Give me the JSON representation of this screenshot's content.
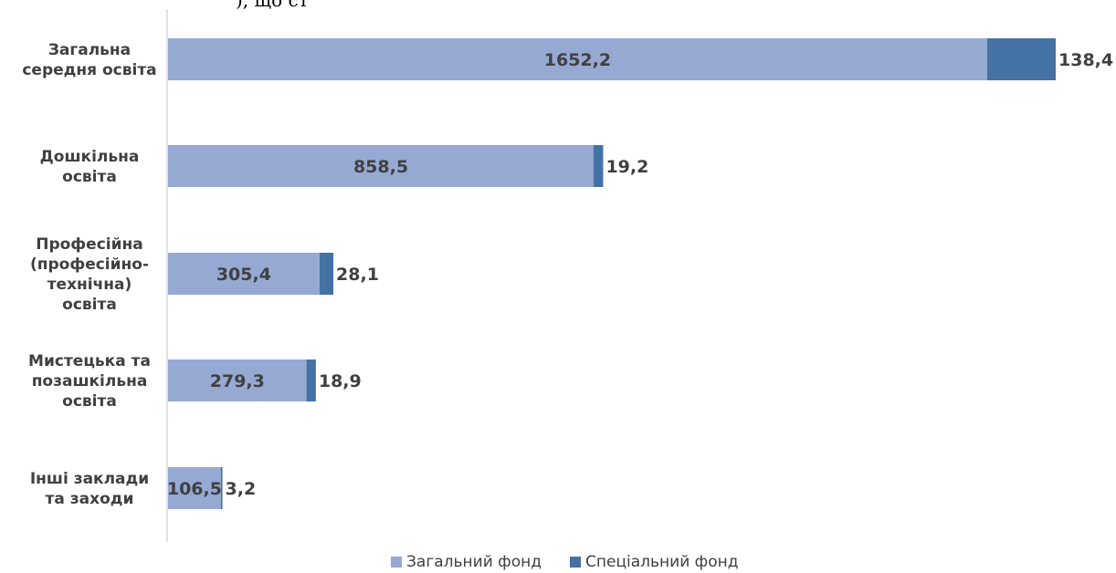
{
  "top_fragment": "), що ст",
  "chart_data": {
    "type": "bar",
    "orientation": "horizontal",
    "stacked": true,
    "categories": [
      [
        "Загальна",
        "середня освіта"
      ],
      [
        "Дошкільна",
        "освіта"
      ],
      [
        "Професійна",
        "(професійно-",
        "технічна)",
        "освіта"
      ],
      [
        "Мистецька та",
        "позашкільна",
        "освіта"
      ],
      [
        "Інші заклади",
        "та заходи"
      ]
    ],
    "series": [
      {
        "name": "Загальний фонд",
        "color": "#95a9d3",
        "values": [
          1652.2,
          858.5,
          305.4,
          279.3,
          106.5
        ],
        "labels": [
          "1652,2",
          "858,5",
          "305,4",
          "279,3",
          "106,5"
        ]
      },
      {
        "name": "Спеціальний фонд",
        "color": "#4472a4",
        "values": [
          138.4,
          19.2,
          28.1,
          18.9,
          3.2
        ],
        "labels": [
          "138,4",
          "19,2",
          "28,1",
          "18,9",
          "3,2"
        ]
      }
    ],
    "xlim": [
      0,
      1790.6
    ],
    "grid": false,
    "legend_position": "bottom"
  }
}
